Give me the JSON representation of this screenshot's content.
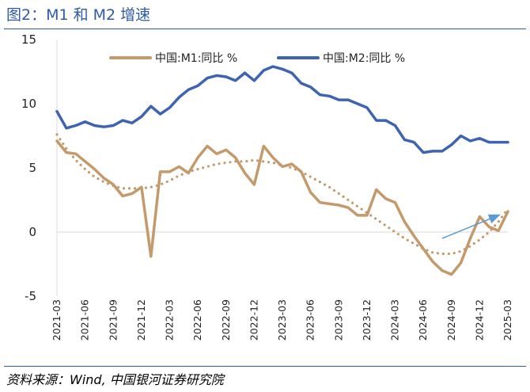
{
  "figure": {
    "title": "图2：M1 和 M2 增速",
    "source": "资料来源：Wind,  中国银河证券研究院"
  },
  "chart_data": {
    "type": "line",
    "title": "图2：M1 和 M2 增速",
    "xlabel": "",
    "ylabel": "",
    "ylim": [
      -5,
      15
    ],
    "yticks": [
      -5,
      0,
      5,
      10,
      15
    ],
    "x_tick_labels": [
      "2021-03",
      "2021-06",
      "2021-09",
      "2021-12",
      "2022-03",
      "2022-06",
      "2022-09",
      "2022-12",
      "2023-03",
      "2023-06",
      "2023-09",
      "2023-12",
      "2024-03",
      "2024-06",
      "2024-09",
      "2024-12",
      "2025-03"
    ],
    "x": [
      "2021-03",
      "2021-04",
      "2021-05",
      "2021-06",
      "2021-07",
      "2021-08",
      "2021-09",
      "2021-10",
      "2021-11",
      "2021-12",
      "2022-01",
      "2022-02",
      "2022-03",
      "2022-04",
      "2022-05",
      "2022-06",
      "2022-07",
      "2022-08",
      "2022-09",
      "2022-10",
      "2022-11",
      "2022-12",
      "2023-01",
      "2023-02",
      "2023-03",
      "2023-04",
      "2023-05",
      "2023-06",
      "2023-07",
      "2023-08",
      "2023-09",
      "2023-10",
      "2023-11",
      "2023-12",
      "2024-01",
      "2024-02",
      "2024-03",
      "2024-04",
      "2024-05",
      "2024-06",
      "2024-07",
      "2024-08",
      "2024-09",
      "2024-10",
      "2024-11",
      "2024-12",
      "2025-01",
      "2025-02",
      "2025-03"
    ],
    "grid": false,
    "legend_position": "top-center",
    "series": [
      {
        "name": "中国:M1:同比 %",
        "color": "#c49a6c",
        "style": "solid",
        "values": [
          7.1,
          6.2,
          6.1,
          5.5,
          4.9,
          4.2,
          3.7,
          2.8,
          3.0,
          3.5,
          -1.9,
          4.7,
          4.7,
          5.1,
          4.6,
          5.8,
          6.7,
          6.1,
          6.4,
          5.8,
          4.6,
          3.7,
          6.7,
          5.8,
          5.1,
          5.3,
          4.7,
          3.1,
          2.3,
          2.2,
          2.1,
          1.9,
          1.3,
          1.3,
          3.3,
          2.6,
          2.3,
          0.8,
          -0.3,
          -1.3,
          -2.3,
          -3.0,
          -3.3,
          -2.4,
          -0.5,
          1.2,
          0.4,
          0.1,
          1.6
        ]
      },
      {
        "name": "中国:M2:同比 %",
        "color": "#3e63b0",
        "style": "solid",
        "values": [
          9.4,
          8.1,
          8.3,
          8.6,
          8.3,
          8.2,
          8.3,
          8.7,
          8.5,
          9.0,
          9.8,
          9.2,
          9.7,
          10.5,
          11.1,
          11.4,
          12.0,
          12.2,
          12.1,
          11.8,
          12.4,
          11.8,
          12.6,
          12.9,
          12.7,
          12.4,
          11.6,
          11.3,
          10.7,
          10.6,
          10.3,
          10.3,
          10.0,
          9.7,
          8.7,
          8.7,
          8.3,
          7.2,
          7.0,
          6.2,
          6.3,
          6.3,
          6.8,
          7.5,
          7.1,
          7.3,
          7.0,
          7.0,
          7.0
        ]
      },
      {
        "name": "",
        "color": "#c49a6c",
        "style": "dotted",
        "values": [
          7.6,
          6.5,
          5.6,
          4.9,
          4.3,
          3.9,
          3.6,
          3.4,
          3.4,
          3.4,
          3.5,
          3.7,
          4.0,
          4.4,
          4.7,
          4.9,
          5.1,
          5.3,
          5.4,
          5.5,
          5.5,
          5.6,
          5.5,
          5.4,
          5.2,
          5.0,
          4.7,
          4.3,
          3.9,
          3.5,
          3.0,
          2.5,
          2.0,
          1.5,
          1.0,
          0.5,
          0.0,
          -0.5,
          -0.9,
          -1.3,
          -1.6,
          -1.7,
          -1.7,
          -1.5,
          -1.1,
          -0.6,
          0.0,
          0.8,
          1.8
        ]
      }
    ],
    "annotations": [
      {
        "type": "arrow",
        "color": "#5b9bd5",
        "from": [
          "2024-08",
          -0.5
        ],
        "to": [
          "2025-02",
          1.3
        ]
      }
    ]
  }
}
